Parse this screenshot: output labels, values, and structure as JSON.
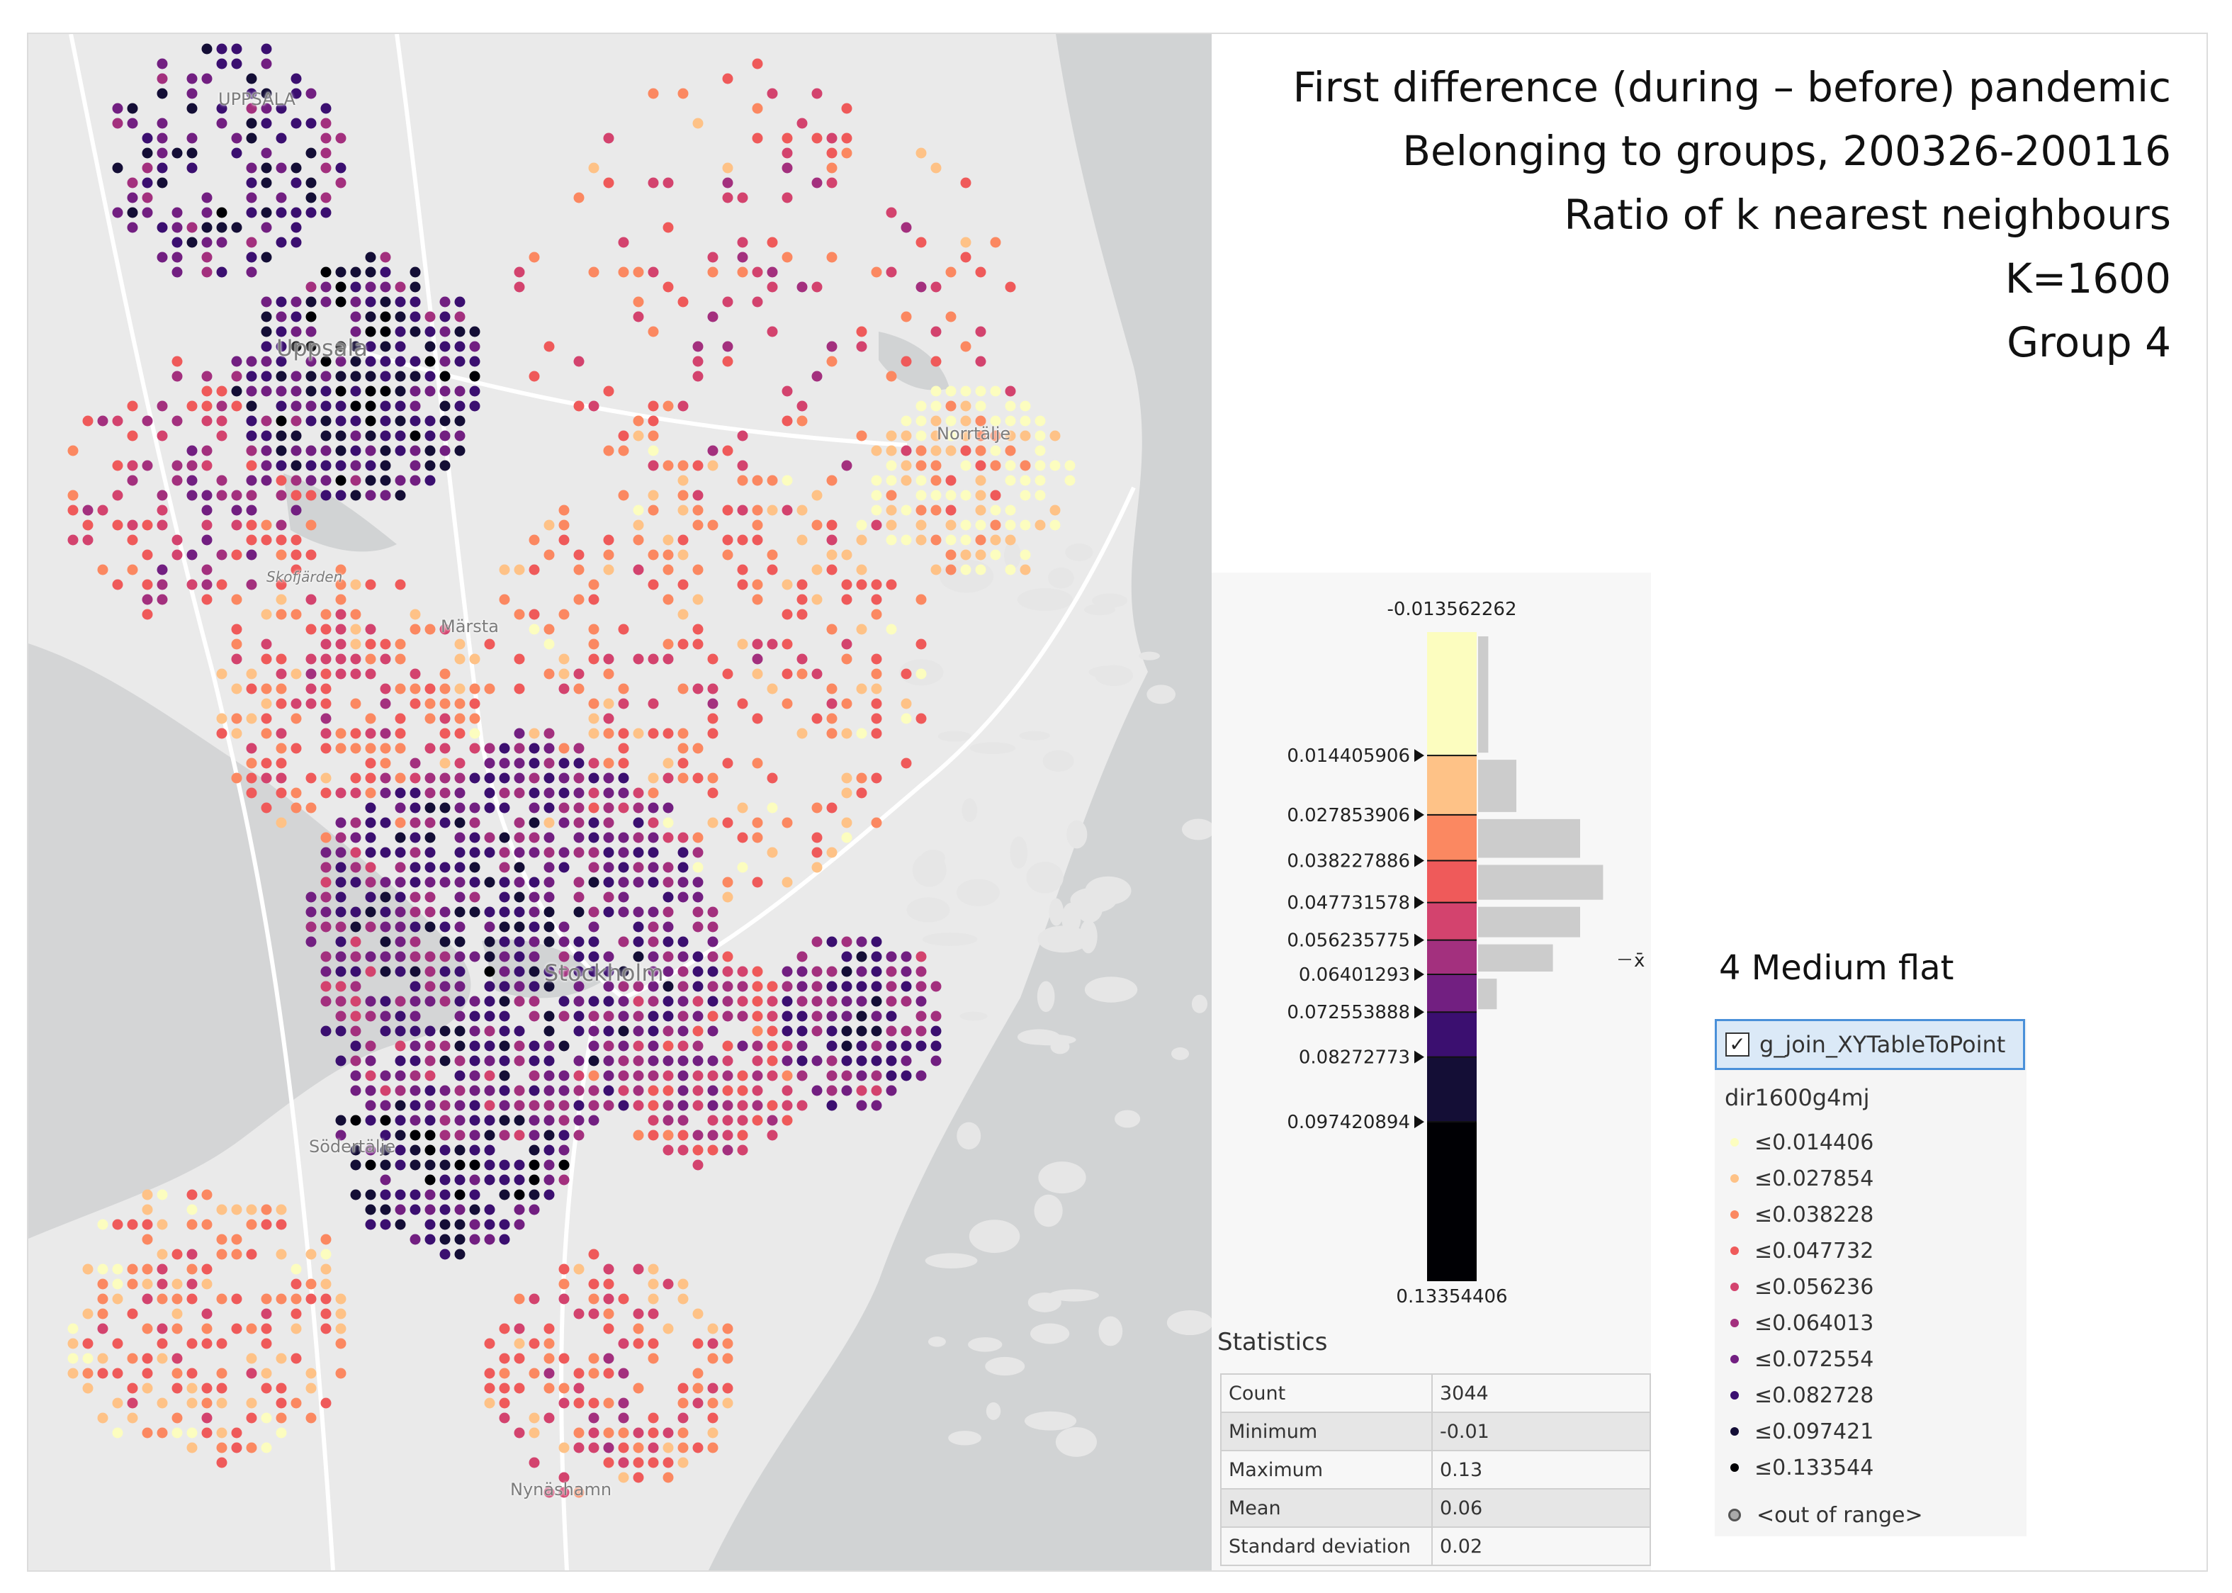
{
  "title": {
    "lines": [
      "First difference (during – before) pandemic",
      "Belonging to groups, 200326-200116",
      "Ratio of k nearest neighbours",
      "K=1600",
      "Group 4"
    ]
  },
  "map": {
    "places": [
      {
        "name": "UPPSALA"
      },
      {
        "name": "Uppsala"
      },
      {
        "name": "Norrtälje"
      },
      {
        "name": "Skofjärden"
      },
      {
        "name": "Märsta"
      },
      {
        "name": "Stockholm"
      },
      {
        "name": "Södertälje"
      },
      {
        "name": "Nynäshamn"
      }
    ],
    "colors": {
      "land": "#eaeaea",
      "water": "#d1d3d4",
      "roads": "#ffffff",
      "class_colors": [
        "#fcfdbf",
        "#fec287",
        "#fb8861",
        "#ef5a5a",
        "#d3436e",
        "#a3307e",
        "#721f81",
        "#3b0f70",
        "#140e36",
        "#000004"
      ]
    }
  },
  "histogram": {
    "min_label": "-0.013562262",
    "max_label": "0.13354406",
    "mean_marker": "x̄",
    "breaks": [
      {
        "label": "0.014405906",
        "value": 0.014405906
      },
      {
        "label": "0.027853906",
        "value": 0.027853906
      },
      {
        "label": "0.038227886",
        "value": 0.038227886
      },
      {
        "label": "0.047731578",
        "value": 0.047731578
      },
      {
        "label": "0.056235775",
        "value": 0.056235775
      },
      {
        "label": "0.06401293",
        "value": 0.06401293
      },
      {
        "label": "0.072553888",
        "value": 0.072553888
      },
      {
        "label": "0.08272773",
        "value": 0.08272773
      },
      {
        "label": "0.097420894",
        "value": 0.097420894
      }
    ],
    "min_value": -0.013562262,
    "max_value": 0.13354406,
    "mean_value": 0.06,
    "bins_relative": [
      0.12,
      0.45,
      1.2,
      1.47,
      1.2,
      0.88,
      0.22,
      0.0
    ]
  },
  "statistics": {
    "heading": "Statistics",
    "rows": [
      {
        "label": "Count",
        "value": "3044"
      },
      {
        "label": "Minimum",
        "value": "-0.01"
      },
      {
        "label": "Maximum",
        "value": "0.13"
      },
      {
        "label": "Mean",
        "value": "0.06"
      },
      {
        "label": "Standard deviation",
        "value": "0.02"
      }
    ]
  },
  "legend": {
    "title": "4 Medium flat",
    "layer_name": "g_join_XYTableToPoint",
    "layer_checked": true,
    "check_glyph": "✓",
    "field": "dir1600g4mj",
    "items": [
      {
        "label": "≤0.014406",
        "color": "#fcfdbf"
      },
      {
        "label": "≤0.027854",
        "color": "#fec287"
      },
      {
        "label": "≤0.038228",
        "color": "#fb8861"
      },
      {
        "label": "≤0.047732",
        "color": "#ef5a5a"
      },
      {
        "label": "≤0.056236",
        "color": "#d3436e"
      },
      {
        "label": "≤0.064013",
        "color": "#a3307e"
      },
      {
        "label": "≤0.072554",
        "color": "#721f81"
      },
      {
        "label": "≤0.082728",
        "color": "#3b0f70"
      },
      {
        "label": "≤0.097421",
        "color": "#140e36"
      },
      {
        "label": "≤0.133544",
        "color": "#000004"
      }
    ],
    "out_of_range": "<out of range>"
  }
}
